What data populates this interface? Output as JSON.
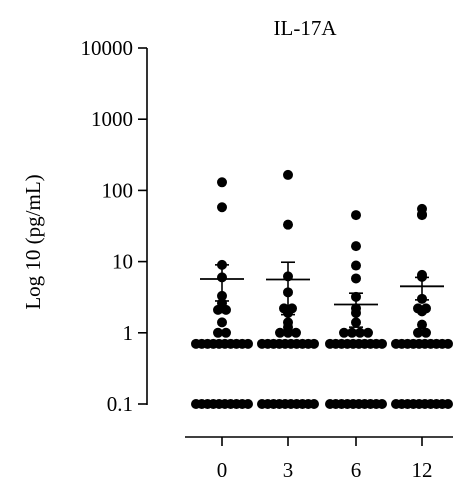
{
  "chart_data": {
    "type": "scatter",
    "title": "IL-17A",
    "xlabel": "",
    "ylabel": "Log 10 (pg/mL)",
    "y_scale": "log",
    "ylim": [
      0.1,
      10000
    ],
    "y_ticks": [
      0.1,
      1,
      10,
      100,
      1000,
      10000
    ],
    "y_tick_labels": [
      "0.1",
      "1",
      "10",
      "100",
      "1000",
      "10000"
    ],
    "categories": [
      "0",
      "3",
      "6",
      "12"
    ],
    "grid": false,
    "legend": "none",
    "marker_color": "#000000",
    "groups": [
      {
        "category": "0",
        "mean": 5.7,
        "sem_low": 2.8,
        "sem_high": 9.0,
        "points": [
          130,
          58,
          9.0,
          6.0,
          3.3,
          2.6,
          2.1,
          2.1,
          2.2,
          1.4,
          1.0,
          1.0,
          0.7,
          0.7,
          0.7,
          0.7,
          0.7,
          0.7,
          0.7,
          0.7,
          0.7,
          0.7,
          0.1,
          0.1,
          0.1,
          0.1,
          0.1,
          0.1,
          0.1,
          0.1,
          0.1,
          0.1
        ]
      },
      {
        "category": "3",
        "mean": 5.6,
        "sem_low": 1.8,
        "sem_high": 9.8,
        "points": [
          165,
          33,
          6.2,
          3.7,
          2.2,
          2.2,
          1.9,
          1.4,
          1.2,
          1.0,
          1.0,
          1.0,
          0.7,
          0.7,
          0.7,
          0.7,
          0.7,
          0.7,
          0.7,
          0.7,
          0.7,
          0.7,
          0.1,
          0.1,
          0.1,
          0.1,
          0.1,
          0.1,
          0.1,
          0.1,
          0.1,
          0.1
        ]
      },
      {
        "category": "6",
        "mean": 2.5,
        "sem_low": 1.2,
        "sem_high": 3.6,
        "points": [
          45,
          16.5,
          8.8,
          5.8,
          3.2,
          2.2,
          1.9,
          1.4,
          1.0,
          1.0,
          1.0,
          1.0,
          0.7,
          0.7,
          0.7,
          0.7,
          0.7,
          0.7,
          0.7,
          0.7,
          0.7,
          0.7,
          0.1,
          0.1,
          0.1,
          0.1,
          0.1,
          0.1,
          0.1,
          0.1,
          0.1,
          0.1
        ]
      },
      {
        "category": "12",
        "mean": 4.5,
        "sem_low": 2.9,
        "sem_high": 6.0,
        "points": [
          55,
          46,
          45,
          6.5,
          6.1,
          3.0,
          2.2,
          2.2,
          2.0,
          1.3,
          1.0,
          1.0,
          0.7,
          0.7,
          0.7,
          0.7,
          0.7,
          0.7,
          0.7,
          0.7,
          0.7,
          0.7,
          0.1,
          0.1,
          0.1,
          0.1,
          0.1,
          0.1,
          0.1,
          0.1,
          0.1,
          0.1
        ]
      }
    ]
  }
}
